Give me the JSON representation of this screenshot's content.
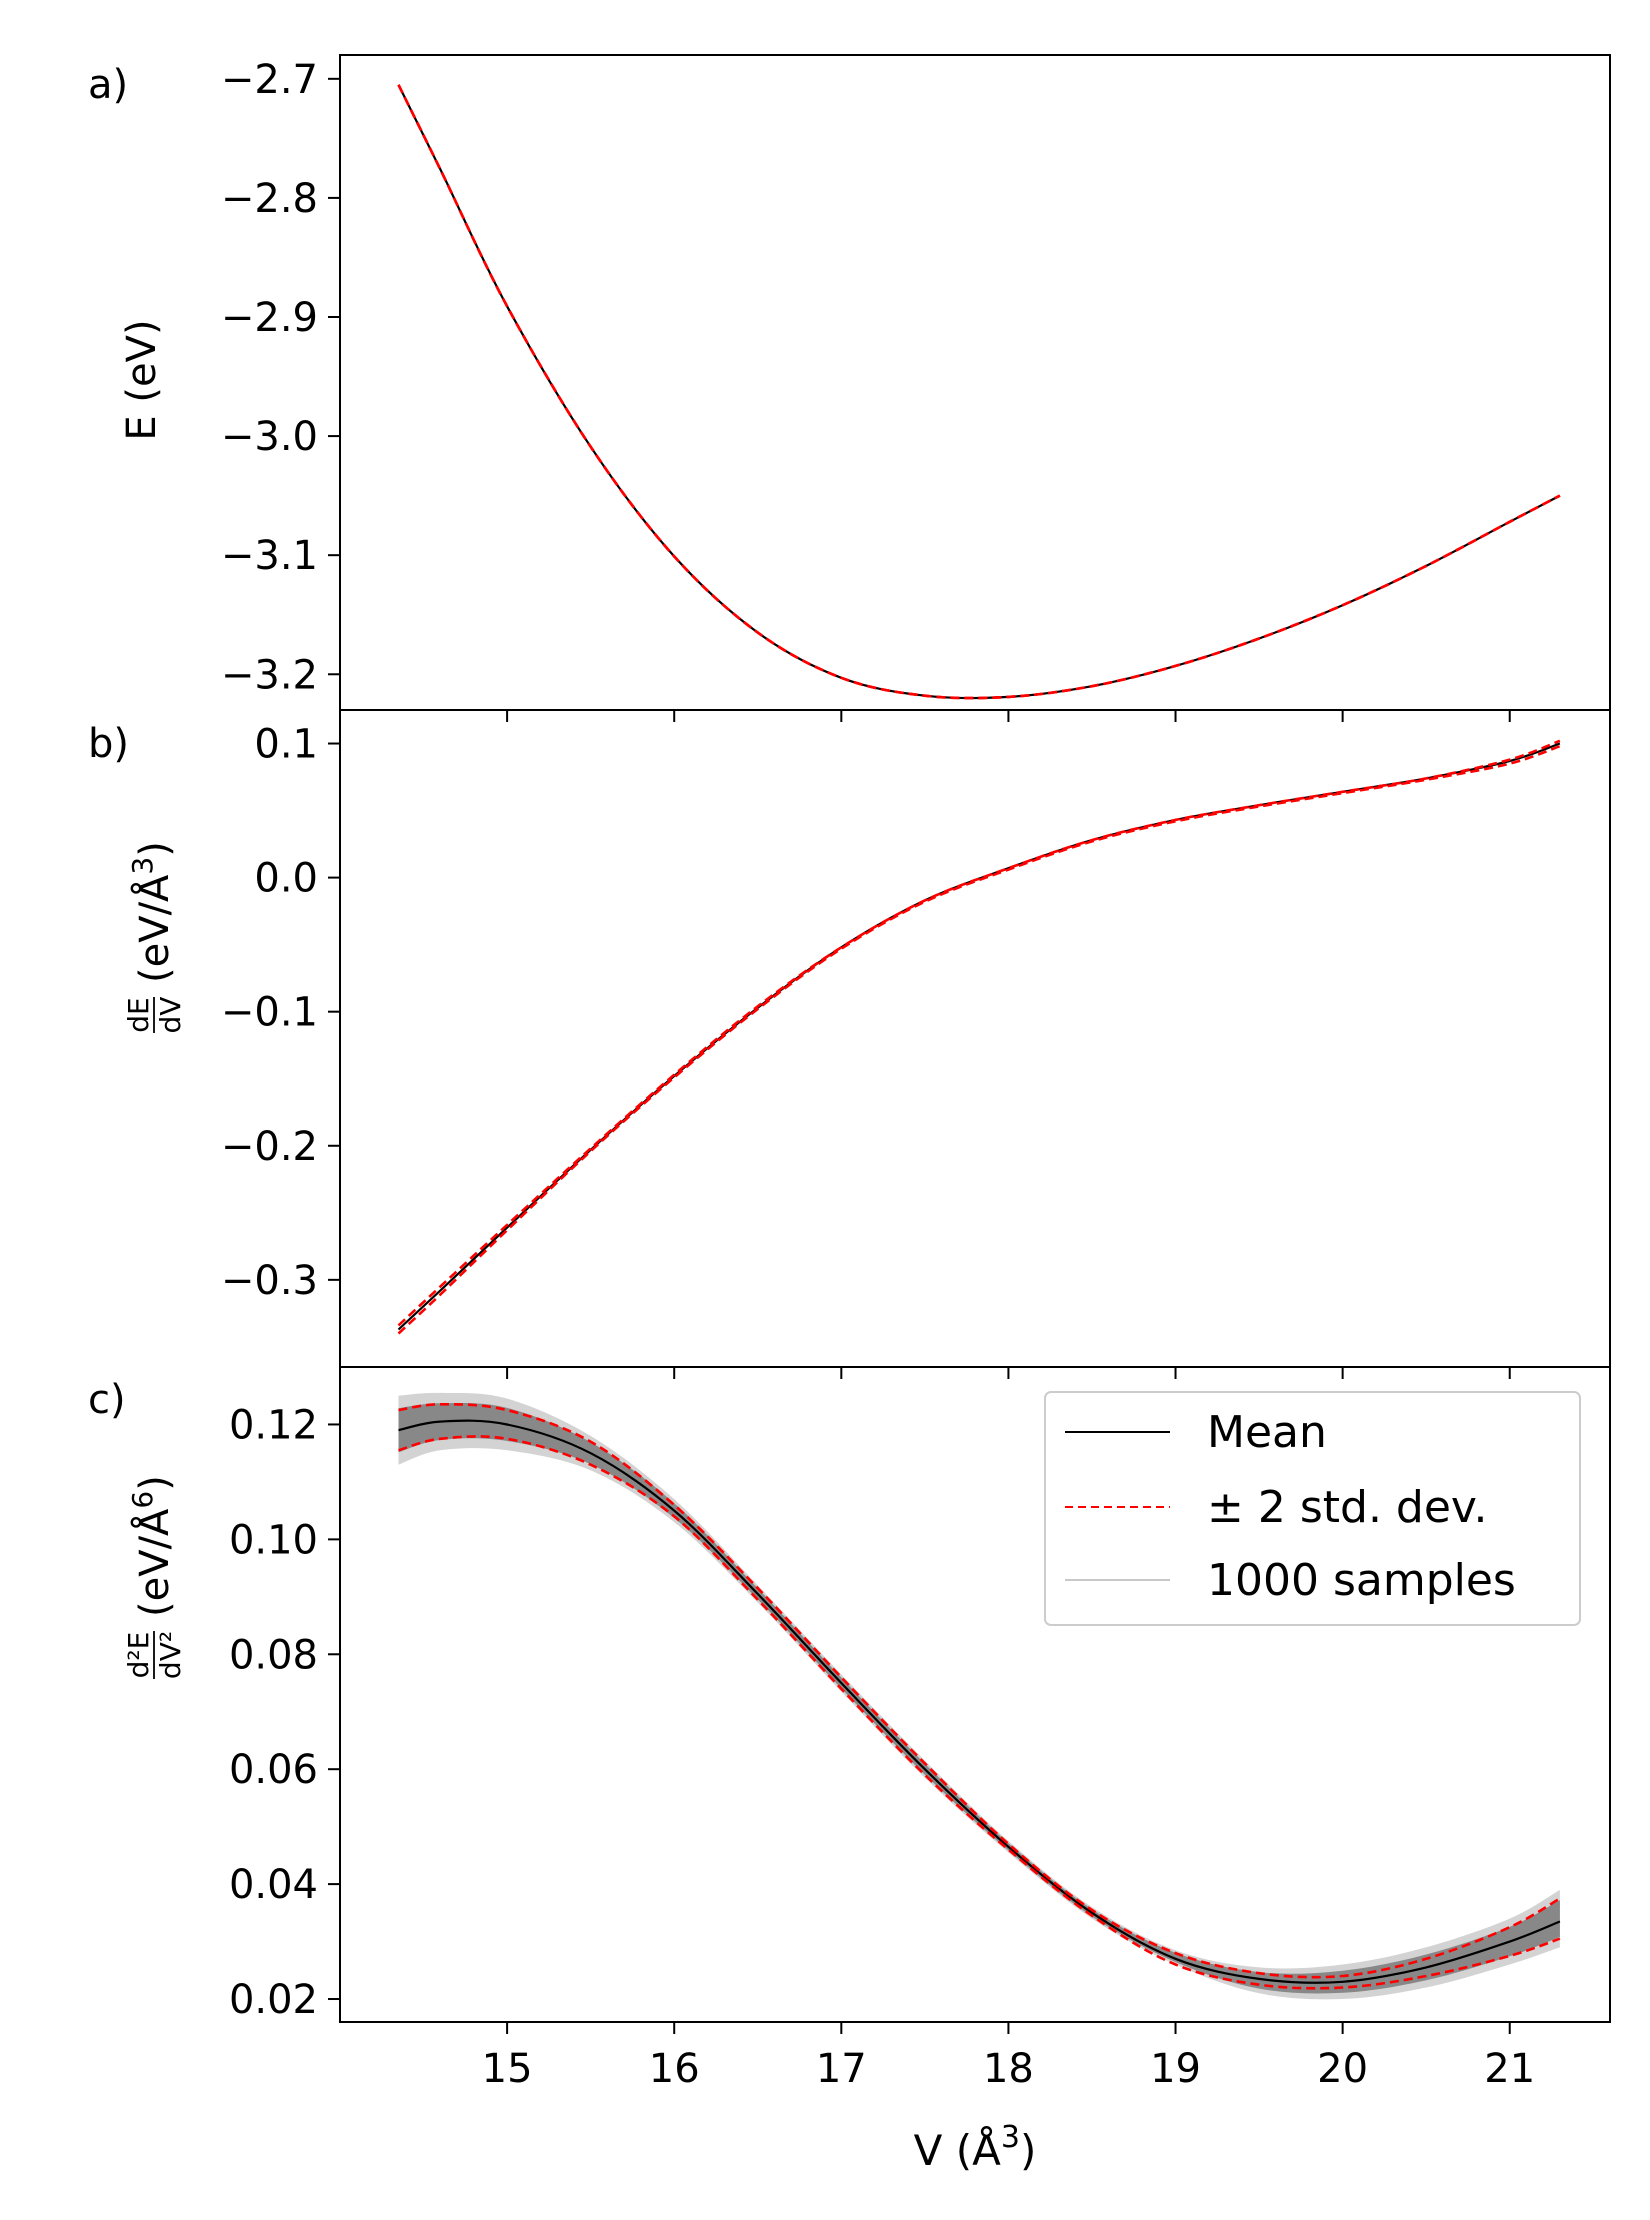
{
  "chart_data": [
    {
      "type": "line",
      "panel_label": "a)",
      "ylabel": "E (eV)",
      "xlabel": "",
      "xlim": [
        14.0,
        21.6
      ],
      "ylim": [
        -3.23,
        -2.68
      ],
      "xticks": [
        15,
        16,
        17,
        18,
        19,
        20,
        21
      ],
      "show_xtick_labels": false,
      "yticks": [
        -2.7,
        -2.8,
        -2.9,
        -3.0,
        -3.1,
        -3.2
      ],
      "ytick_labels": [
        "−2.7",
        "−2.8",
        "−2.9",
        "−3.0",
        "−3.1",
        "−3.2"
      ],
      "grid": false,
      "x": [
        14.35,
        14.6,
        15.0,
        15.5,
        16.0,
        16.5,
        17.0,
        17.5,
        18.0,
        18.5,
        19.0,
        19.5,
        20.0,
        20.5,
        21.0,
        21.3
      ],
      "series": [
        {
          "name": "Mean",
          "color": "#000000",
          "style": "solid",
          "values": [
            -2.705,
            -2.776,
            -2.891,
            -3.009,
            -3.101,
            -3.165,
            -3.203,
            -3.218,
            -3.219,
            -3.21,
            -3.193,
            -3.17,
            -3.142,
            -3.109,
            -3.072,
            -3.05
          ]
        },
        {
          "name": "± 2 std. dev. (upper)",
          "color": "#ff0000",
          "style": "dashed",
          "values": [
            -2.705,
            -2.776,
            -2.891,
            -3.009,
            -3.101,
            -3.165,
            -3.203,
            -3.218,
            -3.219,
            -3.21,
            -3.193,
            -3.17,
            -3.142,
            -3.109,
            -3.072,
            -3.05
          ]
        },
        {
          "name": "± 2 std. dev. (lower)",
          "color": "#ff0000",
          "style": "dashed",
          "values": [
            -2.705,
            -2.776,
            -2.891,
            -3.009,
            -3.101,
            -3.165,
            -3.203,
            -3.218,
            -3.219,
            -3.21,
            -3.193,
            -3.17,
            -3.142,
            -3.109,
            -3.072,
            -3.05
          ]
        }
      ]
    },
    {
      "type": "line",
      "panel_label": "b)",
      "ylabel": "dE/dV (eV/Å3)",
      "ylabel_frac_num": "dE",
      "ylabel_frac_den": "dV",
      "ylabel_rest": "(eV/Å",
      "ylabel_sup": "3",
      "ylabel_close": ")",
      "xlabel": "",
      "xlim": [
        14.0,
        21.6
      ],
      "ylim": [
        -0.365,
        0.125
      ],
      "xticks": [
        15,
        16,
        17,
        18,
        19,
        20,
        21
      ],
      "show_xtick_labels": false,
      "yticks": [
        0.1,
        0.0,
        -0.1,
        -0.2,
        -0.3
      ],
      "ytick_labels": [
        "0.1",
        "0.0",
        "−0.1",
        "−0.2",
        "−0.3"
      ],
      "grid": false,
      "x": [
        14.35,
        14.6,
        15.0,
        15.5,
        16.0,
        16.5,
        17.0,
        17.5,
        18.0,
        18.5,
        19.0,
        19.5,
        20.0,
        20.5,
        21.0,
        21.3
      ],
      "series": [
        {
          "name": "Mean",
          "color": "#000000",
          "style": "solid",
          "values": [
            -0.337,
            -0.308,
            -0.261,
            -0.203,
            -0.148,
            -0.097,
            -0.052,
            -0.017,
            0.007,
            0.028,
            0.043,
            0.054,
            0.064,
            0.074,
            0.087,
            0.1
          ]
        },
        {
          "name": "± 2 std. dev. (upper)",
          "color": "#ff0000",
          "style": "dashed",
          "values": [
            -0.334,
            -0.305,
            -0.259,
            -0.202,
            -0.147,
            -0.096,
            -0.052,
            -0.017,
            0.007,
            0.028,
            0.043,
            0.054,
            0.064,
            0.074,
            0.088,
            0.102
          ]
        },
        {
          "name": "± 2 std. dev. (lower)",
          "color": "#ff0000",
          "style": "dashed",
          "values": [
            -0.34,
            -0.311,
            -0.263,
            -0.204,
            -0.149,
            -0.098,
            -0.053,
            -0.018,
            0.006,
            0.027,
            0.042,
            0.053,
            0.063,
            0.073,
            0.085,
            0.098
          ]
        }
      ]
    },
    {
      "type": "line",
      "panel_label": "c)",
      "ylabel": "d2E/dV2 (eV/Å6)",
      "ylabel_frac_num": "d²E",
      "ylabel_frac_den": "dV²",
      "ylabel_rest": "(eV/Å",
      "ylabel_sup": "6",
      "ylabel_close": ")",
      "xlabel": "V (Å3)",
      "xlabel_main": "V (Å",
      "xlabel_sup": "3",
      "xlabel_close": ")",
      "xlim": [
        14.0,
        21.6
      ],
      "ylim": [
        0.016,
        0.13
      ],
      "xticks": [
        15,
        16,
        17,
        18,
        19,
        20,
        21
      ],
      "xtick_labels": [
        "15",
        "16",
        "17",
        "18",
        "19",
        "20",
        "21"
      ],
      "show_xtick_labels": true,
      "yticks": [
        0.12,
        0.1,
        0.08,
        0.06,
        0.04,
        0.02
      ],
      "ytick_labels": [
        "0.12",
        "0.10",
        "0.08",
        "0.06",
        "0.04",
        "0.02"
      ],
      "grid": false,
      "legend_placement": "top-right",
      "x": [
        14.35,
        14.6,
        15.0,
        15.5,
        16.0,
        16.5,
        17.0,
        17.5,
        18.0,
        18.5,
        19.0,
        19.5,
        20.0,
        20.5,
        21.0,
        21.3
      ],
      "band": {
        "name": "1000 samples",
        "color": "#808080",
        "upper": [
          0.125,
          0.1255,
          0.1245,
          0.118,
          0.107,
          0.092,
          0.0765,
          0.0615,
          0.0475,
          0.036,
          0.0285,
          0.0255,
          0.026,
          0.029,
          0.034,
          0.039
        ],
        "lower": [
          0.113,
          0.1155,
          0.1155,
          0.112,
          0.103,
          0.089,
          0.0735,
          0.0585,
          0.0455,
          0.034,
          0.026,
          0.021,
          0.02,
          0.022,
          0.026,
          0.029
        ]
      },
      "series": [
        {
          "name": "Mean",
          "color": "#000000",
          "style": "solid",
          "values": [
            0.119,
            0.1205,
            0.12,
            0.115,
            0.105,
            0.0905,
            0.075,
            0.06,
            0.0465,
            0.035,
            0.027,
            0.0235,
            0.023,
            0.0255,
            0.03,
            0.0335
          ]
        },
        {
          "name": "± 2 std. dev.",
          "color": "#ff0000",
          "style": "dashed",
          "values": [
            0.1225,
            0.1235,
            0.1225,
            0.117,
            0.106,
            0.0915,
            0.076,
            0.061,
            0.047,
            0.0355,
            0.028,
            0.0245,
            0.024,
            0.027,
            0.0325,
            0.0375
          ]
        },
        {
          "name": "± 2 std. dev. (lower)",
          "color": "#ff0000",
          "style": "dashed",
          "values": [
            0.1155,
            0.1175,
            0.1175,
            0.113,
            0.104,
            0.0895,
            0.074,
            0.059,
            0.046,
            0.0345,
            0.026,
            0.0225,
            0.022,
            0.024,
            0.0275,
            0.0305
          ]
        }
      ],
      "legend": [
        {
          "label": "Mean",
          "color": "#000000",
          "style": "solid"
        },
        {
          "label": "± 2 std. dev.",
          "color": "#ff0000",
          "style": "dashed"
        },
        {
          "label": "1000 samples",
          "color": "#c8c8c8",
          "style": "solid"
        }
      ]
    }
  ]
}
